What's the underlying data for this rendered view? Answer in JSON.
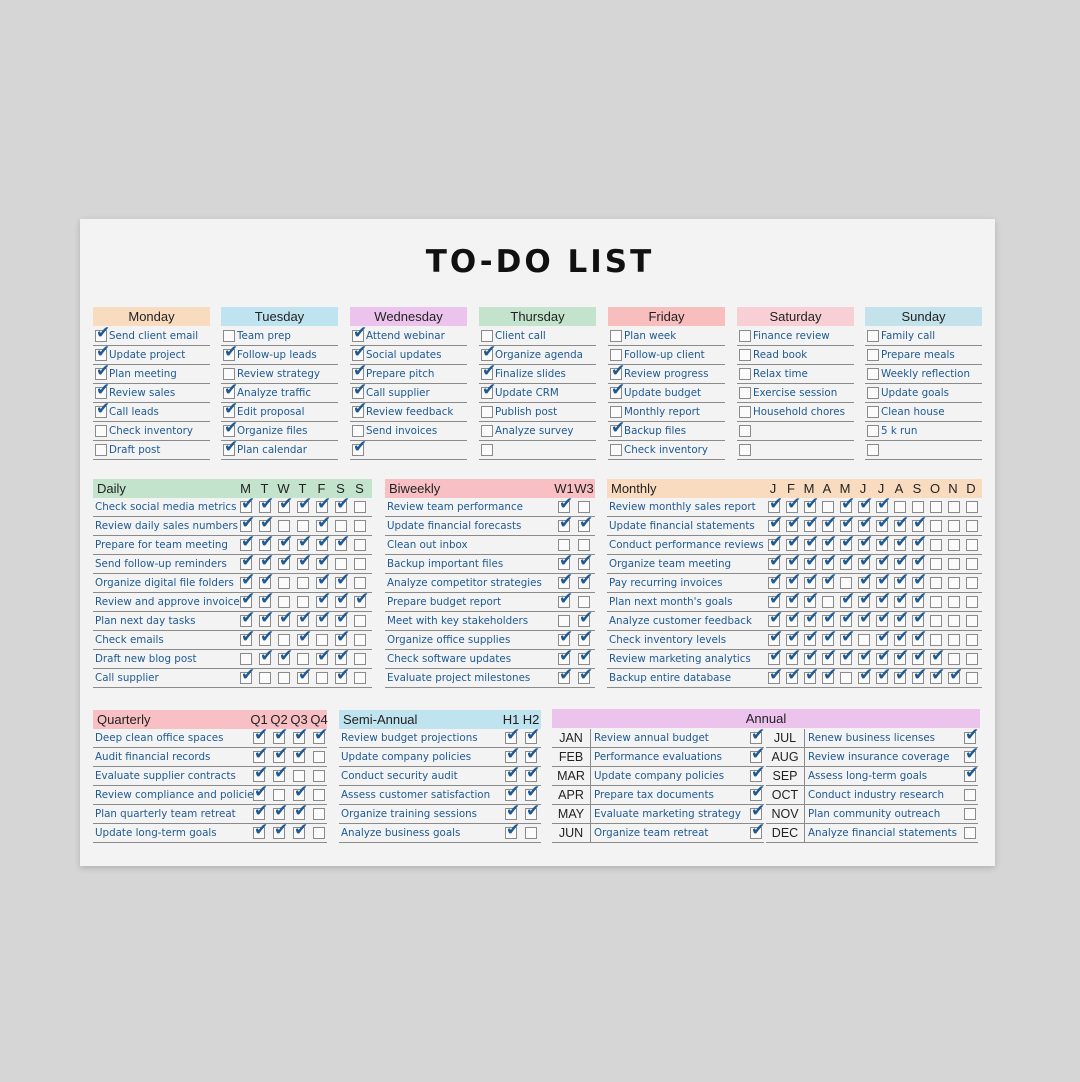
{
  "title": "TO-DO LIST",
  "colors": {
    "monday": "#f9dcc0",
    "tuesday": "#bfe3ef",
    "wednesday": "#ecc3ec",
    "thursday": "#c4e3cc",
    "friday": "#f8bdbd",
    "saturday": "#f7cfd4",
    "sunday": "#c3e2ec",
    "daily": "#c4e3cc",
    "biweekly": "#f8c0c4",
    "monthly": "#f9dcc0",
    "quarterly": "#f8c0c4",
    "semiannual": "#bfe3ef",
    "annual": "#ecc3ec",
    "text": "#1f5a93"
  },
  "weekdays": [
    {
      "name": "Monday",
      "color": "monday",
      "tasks": [
        {
          "text": "Send client email",
          "done": true
        },
        {
          "text": "Update project",
          "done": true
        },
        {
          "text": "Plan meeting",
          "done": true
        },
        {
          "text": "Review sales",
          "done": true
        },
        {
          "text": "Call leads",
          "done": true
        },
        {
          "text": "Check inventory",
          "done": false
        },
        {
          "text": "Draft post",
          "done": false
        }
      ]
    },
    {
      "name": "Tuesday",
      "color": "tuesday",
      "tasks": [
        {
          "text": "Team prep",
          "done": false
        },
        {
          "text": "Follow-up leads",
          "done": true
        },
        {
          "text": "Review strategy",
          "done": false
        },
        {
          "text": "Analyze traffic",
          "done": true
        },
        {
          "text": "Edit proposal",
          "done": true
        },
        {
          "text": "Organize files",
          "done": true
        },
        {
          "text": "Plan calendar",
          "done": true
        }
      ]
    },
    {
      "name": "Wednesday",
      "color": "wednesday",
      "tasks": [
        {
          "text": "Attend webinar",
          "done": true
        },
        {
          "text": "Social updates",
          "done": true
        },
        {
          "text": "Prepare pitch",
          "done": true
        },
        {
          "text": "Call supplier",
          "done": true
        },
        {
          "text": "Review feedback",
          "done": true
        },
        {
          "text": "Send invoices",
          "done": false
        },
        {
          "text": "",
          "done": true
        }
      ]
    },
    {
      "name": "Thursday",
      "color": "thursday",
      "tasks": [
        {
          "text": "Client call",
          "done": false
        },
        {
          "text": "Organize agenda",
          "done": true
        },
        {
          "text": "Finalize slides",
          "done": true
        },
        {
          "text": "Update CRM",
          "done": true
        },
        {
          "text": "Publish post",
          "done": false
        },
        {
          "text": "Analyze survey",
          "done": false
        },
        {
          "text": "",
          "done": false
        }
      ]
    },
    {
      "name": "Friday",
      "color": "friday",
      "tasks": [
        {
          "text": "Plan week",
          "done": false
        },
        {
          "text": "Follow-up client",
          "done": false
        },
        {
          "text": "Review progress",
          "done": true
        },
        {
          "text": "Update budget",
          "done": true
        },
        {
          "text": "Monthly report",
          "done": false
        },
        {
          "text": "Backup files",
          "done": true
        },
        {
          "text": "Check inventory",
          "done": false
        }
      ]
    },
    {
      "name": "Saturday",
      "color": "saturday",
      "tasks": [
        {
          "text": "Finance review",
          "done": false
        },
        {
          "text": "Read book",
          "done": false
        },
        {
          "text": "Relax time",
          "done": false
        },
        {
          "text": "Exercise session",
          "done": false
        },
        {
          "text": "Household chores",
          "done": false
        },
        {
          "text": "",
          "done": false
        },
        {
          "text": "",
          "done": false
        }
      ]
    },
    {
      "name": "Sunday",
      "color": "sunday",
      "tasks": [
        {
          "text": "Family call",
          "done": false
        },
        {
          "text": "Prepare meals",
          "done": false
        },
        {
          "text": "Weekly reflection",
          "done": false
        },
        {
          "text": "Update goals",
          "done": false
        },
        {
          "text": "Clean house",
          "done": false
        },
        {
          "text": "5 k run",
          "done": false
        },
        {
          "text": "",
          "done": false
        }
      ]
    }
  ],
  "daily": {
    "label": "Daily",
    "cols": [
      "M",
      "T",
      "W",
      "T",
      "F",
      "S",
      "S"
    ],
    "rows": [
      {
        "text": "Check social media metrics",
        "checks": [
          1,
          1,
          1,
          1,
          1,
          1,
          0
        ]
      },
      {
        "text": "Review daily sales numbers",
        "checks": [
          1,
          1,
          0,
          0,
          1,
          0,
          0
        ]
      },
      {
        "text": "Prepare for team meeting",
        "checks": [
          1,
          1,
          1,
          1,
          1,
          1,
          0
        ]
      },
      {
        "text": "Send follow-up reminders",
        "checks": [
          1,
          1,
          1,
          1,
          1,
          0,
          0
        ]
      },
      {
        "text": "Organize digital file folders",
        "checks": [
          1,
          1,
          0,
          0,
          1,
          1,
          0
        ]
      },
      {
        "text": "Review and approve invoices",
        "checks": [
          1,
          1,
          0,
          0,
          1,
          1,
          1
        ]
      },
      {
        "text": "Plan next day tasks",
        "checks": [
          1,
          1,
          1,
          1,
          1,
          1,
          0
        ]
      },
      {
        "text": "Check emails",
        "checks": [
          1,
          1,
          0,
          1,
          0,
          1,
          0
        ]
      },
      {
        "text": "Draft new blog post",
        "checks": [
          0,
          1,
          1,
          0,
          1,
          1,
          0
        ]
      },
      {
        "text": "Call supplier",
        "checks": [
          1,
          0,
          0,
          1,
          0,
          1,
          0
        ]
      }
    ]
  },
  "biweekly": {
    "label": "Biweekly",
    "cols": [
      "W1",
      "W3"
    ],
    "rows": [
      {
        "text": "Review team performance",
        "checks": [
          1,
          0
        ]
      },
      {
        "text": "Update financial forecasts",
        "checks": [
          1,
          1
        ]
      },
      {
        "text": "Clean out inbox",
        "checks": [
          0,
          0
        ]
      },
      {
        "text": "Backup important files",
        "checks": [
          1,
          1
        ]
      },
      {
        "text": "Analyze competitor strategies",
        "checks": [
          1,
          1
        ]
      },
      {
        "text": "Prepare budget report",
        "checks": [
          1,
          0
        ]
      },
      {
        "text": "Meet with key stakeholders",
        "checks": [
          0,
          1
        ]
      },
      {
        "text": "Organize office supplies",
        "checks": [
          1,
          1
        ]
      },
      {
        "text": "Check software updates",
        "checks": [
          1,
          1
        ]
      },
      {
        "text": "Evaluate project milestones",
        "checks": [
          1,
          1
        ]
      }
    ]
  },
  "monthly": {
    "label": "Monthly",
    "cols": [
      "J",
      "F",
      "M",
      "A",
      "M",
      "J",
      "J",
      "A",
      "S",
      "O",
      "N",
      "D"
    ],
    "rows": [
      {
        "text": "Review monthly sales report",
        "checks": [
          1,
          1,
          1,
          0,
          1,
          1,
          1,
          0,
          0,
          0,
          0,
          0
        ]
      },
      {
        "text": "Update financial statements",
        "checks": [
          1,
          1,
          1,
          1,
          1,
          1,
          1,
          1,
          1,
          0,
          0,
          0
        ]
      },
      {
        "text": "Conduct performance reviews",
        "checks": [
          1,
          1,
          1,
          1,
          1,
          1,
          1,
          1,
          1,
          0,
          0,
          0
        ]
      },
      {
        "text": "Organize team meeting",
        "checks": [
          1,
          1,
          1,
          1,
          1,
          1,
          1,
          1,
          1,
          0,
          0,
          0
        ]
      },
      {
        "text": "Pay recurring invoices",
        "checks": [
          1,
          1,
          1,
          1,
          0,
          1,
          1,
          1,
          1,
          0,
          0,
          0
        ]
      },
      {
        "text": "Plan next month's goals",
        "checks": [
          1,
          1,
          1,
          0,
          1,
          1,
          1,
          1,
          1,
          0,
          0,
          0
        ]
      },
      {
        "text": "Analyze customer feedback",
        "checks": [
          1,
          1,
          1,
          1,
          1,
          1,
          1,
          1,
          1,
          0,
          0,
          0
        ]
      },
      {
        "text": "Check inventory levels",
        "checks": [
          1,
          1,
          1,
          1,
          1,
          0,
          1,
          1,
          1,
          0,
          0,
          0
        ]
      },
      {
        "text": "Review marketing analytics",
        "checks": [
          1,
          1,
          1,
          1,
          1,
          1,
          1,
          1,
          1,
          1,
          0,
          0
        ]
      },
      {
        "text": "Backup entire database",
        "checks": [
          1,
          1,
          1,
          1,
          0,
          1,
          1,
          1,
          1,
          1,
          1,
          0
        ]
      }
    ]
  },
  "quarterly": {
    "label": "Quarterly",
    "cols": [
      "Q1",
      "Q2",
      "Q3",
      "Q4"
    ],
    "rows": [
      {
        "text": "Deep clean office spaces",
        "checks": [
          1,
          1,
          1,
          1
        ]
      },
      {
        "text": "Audit financial records",
        "checks": [
          1,
          1,
          1,
          0
        ]
      },
      {
        "text": "Evaluate supplier contracts",
        "checks": [
          1,
          1,
          0,
          0
        ]
      },
      {
        "text": "Review compliance and policies",
        "checks": [
          1,
          0,
          1,
          0
        ]
      },
      {
        "text": "Plan quarterly team retreat",
        "checks": [
          1,
          1,
          1,
          0
        ]
      },
      {
        "text": "Update long-term goals",
        "checks": [
          1,
          1,
          1,
          0
        ]
      }
    ]
  },
  "semiannual": {
    "label": "Semi-Annual",
    "cols": [
      "H1",
      "H2"
    ],
    "rows": [
      {
        "text": "Review budget projections",
        "checks": [
          1,
          1
        ]
      },
      {
        "text": "Update company policies",
        "checks": [
          1,
          1
        ]
      },
      {
        "text": "Conduct security audit",
        "checks": [
          1,
          1
        ]
      },
      {
        "text": "Assess customer satisfaction",
        "checks": [
          1,
          1
        ]
      },
      {
        "text": "Organize training sessions",
        "checks": [
          1,
          1
        ]
      },
      {
        "text": "Analyze business goals",
        "checks": [
          1,
          0
        ]
      }
    ]
  },
  "annual": {
    "label": "Annual",
    "left": [
      {
        "month": "JAN",
        "text": "Review annual budget",
        "done": true
      },
      {
        "month": "FEB",
        "text": "Performance evaluations",
        "done": true
      },
      {
        "month": "MAR",
        "text": "Update company policies",
        "done": true
      },
      {
        "month": "APR",
        "text": "Prepare tax documents",
        "done": true
      },
      {
        "month": "MAY",
        "text": "Evaluate marketing strategy",
        "done": true
      },
      {
        "month": "JUN",
        "text": "Organize team retreat",
        "done": true
      }
    ],
    "right": [
      {
        "month": "JUL",
        "text": "Renew business licenses",
        "done": true
      },
      {
        "month": "AUG",
        "text": "Review insurance coverage",
        "done": true
      },
      {
        "month": "SEP",
        "text": "Assess long-term goals",
        "done": true
      },
      {
        "month": "OCT",
        "text": "Conduct industry research",
        "done": false
      },
      {
        "month": "NOV",
        "text": "Plan community outreach",
        "done": false
      },
      {
        "month": "DEC",
        "text": "Analyze financial statements",
        "done": false
      }
    ]
  }
}
